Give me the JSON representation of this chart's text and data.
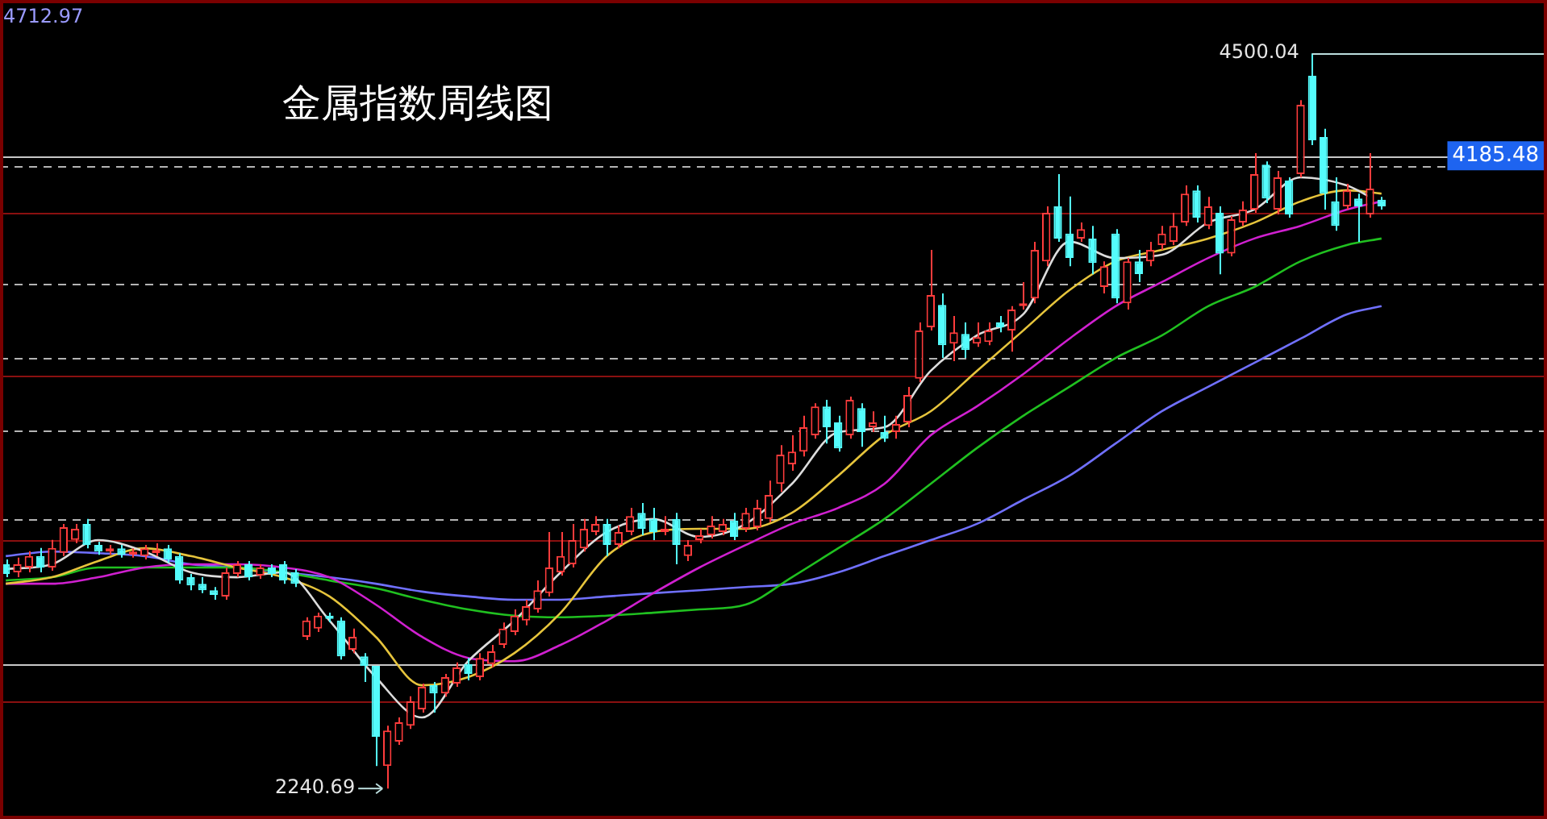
{
  "chart_data": {
    "type": "candlestick",
    "title": "金属指数周线图",
    "categories": [
      null,
      null,
      null,
      null,
      null,
      null,
      null,
      null,
      null,
      null,
      null,
      null,
      null,
      null,
      null,
      null,
      null,
      null,
      null,
      null,
      null,
      null,
      null,
      null,
      null,
      null,
      null,
      null,
      null,
      null,
      null,
      null,
      null,
      null,
      null,
      null,
      null,
      null,
      null,
      null,
      null,
      null,
      null,
      null,
      null,
      null,
      null,
      null,
      null,
      null,
      null,
      null,
      null,
      null,
      null,
      null,
      null,
      null,
      null,
      null,
      null,
      null,
      null,
      null,
      null,
      null,
      null,
      null,
      null,
      null,
      null,
      null,
      null,
      null,
      null,
      null,
      null,
      null,
      null,
      null,
      null,
      null,
      null,
      null,
      null,
      null,
      null,
      null,
      null,
      null,
      null,
      null,
      null,
      null,
      null,
      null,
      null,
      null,
      null,
      null,
      null,
      null,
      null,
      null,
      null,
      null,
      null,
      null,
      null,
      null,
      null,
      null,
      null,
      null,
      null,
      null,
      null,
      null,
      null,
      null
    ],
    "ohlc": [
      [
        2930,
        2945,
        2890,
        2900
      ],
      [
        2905,
        2950,
        2890,
        2930
      ],
      [
        2920,
        2970,
        2905,
        2955
      ],
      [
        2955,
        2980,
        2905,
        2920
      ],
      [
        2920,
        3005,
        2910,
        2980
      ],
      [
        2965,
        3054,
        2955,
        3044
      ],
      [
        3005,
        3054,
        2995,
        3039
      ],
      [
        3054,
        3069,
        2979,
        2989
      ],
      [
        2989,
        2999,
        2959,
        2969
      ],
      [
        2969,
        2989,
        2959,
        2979
      ],
      [
        2979,
        2989,
        2950,
        2959
      ],
      [
        2959,
        2979,
        2950,
        2969
      ],
      [
        2955,
        2989,
        2945,
        2979
      ],
      [
        2964,
        2994,
        2955,
        2974
      ],
      [
        2979,
        2989,
        2935,
        2945
      ],
      [
        2955,
        2964,
        2870,
        2880
      ],
      [
        2890,
        2900,
        2850,
        2865
      ],
      [
        2870,
        2890,
        2841,
        2850
      ],
      [
        2850,
        2860,
        2821,
        2836
      ],
      [
        2831,
        2920,
        2821,
        2905
      ],
      [
        2900,
        2940,
        2890,
        2930
      ],
      [
        2930,
        2940,
        2880,
        2890
      ],
      [
        2895,
        2930,
        2885,
        2920
      ],
      [
        2920,
        2930,
        2890,
        2900
      ],
      [
        2930,
        2940,
        2870,
        2880
      ],
      [
        2905,
        2915,
        2860,
        2870
      ],
      [
        2707,
        2767,
        2697,
        2757
      ],
      [
        2732,
        2781,
        2722,
        2772
      ],
      [
        2772,
        2781,
        2752,
        2762
      ],
      [
        2757,
        2767,
        2637,
        2647
      ],
      [
        2667,
        2732,
        2657,
        2707
      ],
      [
        2647,
        2657,
        2568,
        2618
      ],
      [
        2618,
        2618,
        2310,
        2400
      ],
      [
        2310,
        2434,
        2240.69,
        2419
      ],
      [
        2385,
        2459,
        2375,
        2444
      ],
      [
        2434,
        2524,
        2424,
        2509
      ],
      [
        2484,
        2563,
        2474,
        2553
      ],
      [
        2558,
        2568,
        2474,
        2533
      ],
      [
        2533,
        2593,
        2523,
        2583
      ],
      [
        2563,
        2628,
        2553,
        2613
      ],
      [
        2623,
        2642,
        2573,
        2593
      ],
      [
        2583,
        2657,
        2573,
        2642
      ],
      [
        2623,
        2682,
        2613,
        2662
      ],
      [
        2682,
        2751,
        2672,
        2732
      ],
      [
        2722,
        2791,
        2712,
        2772
      ],
      [
        2757,
        2821,
        2742,
        2801
      ],
      [
        2791,
        2880,
        2781,
        2850
      ],
      [
        2841,
        3029,
        2831,
        2920
      ],
      [
        2905,
        3029,
        2895,
        2955
      ],
      [
        2930,
        3054,
        2920,
        3004
      ],
      [
        2979,
        3069,
        2969,
        3039
      ],
      [
        3029,
        3078,
        3019,
        3054
      ],
      [
        3054,
        3069,
        2955,
        2989
      ],
      [
        2989,
        3049,
        2979,
        3029
      ],
      [
        3029,
        3103,
        3019,
        3078
      ],
      [
        3088,
        3118,
        3019,
        3039
      ],
      [
        3069,
        3103,
        3004,
        3029
      ],
      [
        3029,
        3078,
        3019,
        3039
      ],
      [
        3069,
        3088,
        2930,
        2989
      ],
      [
        2955,
        3004,
        2940,
        2989
      ],
      [
        3004,
        3039,
        2994,
        3019
      ],
      [
        3019,
        3078,
        3009,
        3049
      ],
      [
        3029,
        3069,
        3019,
        3054
      ],
      [
        3064,
        3088,
        3004,
        3014
      ],
      [
        3039,
        3103,
        3029,
        3088
      ],
      [
        3044,
        3128,
        3034,
        3103
      ],
      [
        3069,
        3187,
        3059,
        3143
      ],
      [
        3177,
        3296,
        3152,
        3267
      ],
      [
        3237,
        3326,
        3217,
        3276
      ],
      [
        3276,
        3386,
        3261,
        3351
      ],
      [
        3326,
        3425,
        3316,
        3415
      ],
      [
        3415,
        3435,
        3301,
        3351
      ],
      [
        3366,
        3386,
        3276,
        3286
      ],
      [
        3326,
        3445,
        3316,
        3435
      ],
      [
        3410,
        3425,
        3291,
        3336
      ],
      [
        3351,
        3400,
        3336,
        3366
      ],
      [
        3336,
        3386,
        3306,
        3316
      ],
      [
        3336,
        3386,
        3316,
        3361
      ],
      [
        3366,
        3475,
        3351,
        3450
      ],
      [
        3500,
        3673,
        3490,
        3648
      ],
      [
        3658,
        3896,
        3648,
        3757
      ],
      [
        3727,
        3762,
        3564,
        3603
      ],
      [
        3608,
        3693,
        3554,
        3643
      ],
      [
        3638,
        3673,
        3564,
        3588
      ],
      [
        3608,
        3673,
        3598,
        3628
      ],
      [
        3613,
        3673,
        3603,
        3648
      ],
      [
        3673,
        3693,
        3643,
        3658
      ],
      [
        3648,
        3723,
        3583,
        3713
      ],
      [
        3723,
        3797,
        3713,
        3732
      ],
      [
        3747,
        3921,
        3732,
        3896
      ],
      [
        3861,
        4030,
        3846,
        4010
      ],
      [
        4030,
        4129,
        3921,
        3931
      ],
      [
        3946,
        4060,
        3846,
        3871
      ],
      [
        3931,
        3980,
        3921,
        3960
      ],
      [
        3931,
        3970,
        3821,
        3856
      ],
      [
        3782,
        3861,
        3762,
        3846
      ],
      [
        3946,
        3960,
        3732,
        3747
      ],
      [
        3732,
        3871,
        3713,
        3861
      ],
      [
        3861,
        3896,
        3797,
        3822
      ],
      [
        3861,
        3921,
        3846,
        3896
      ],
      [
        3911,
        3970,
        3896,
        3946
      ],
      [
        3921,
        4010,
        3911,
        3970
      ],
      [
        3980,
        4094,
        3970,
        4069
      ],
      [
        4079,
        4094,
        3980,
        3995
      ],
      [
        3970,
        4059,
        3960,
        4030
      ],
      [
        4010,
        4030,
        3821,
        3885
      ],
      [
        3885,
        4000,
        3876,
        3990
      ],
      [
        3980,
        4045,
        3970,
        4020
      ],
      [
        4020,
        4193,
        4010,
        4129
      ],
      [
        4158,
        4168,
        4040,
        4054
      ],
      [
        4020,
        4139,
        4005,
        4119
      ],
      [
        4109,
        4119,
        3995,
        4005
      ],
      [
        4129,
        4356,
        4119,
        4342
      ],
      [
        4431,
        4500.04,
        4218,
        4233
      ],
      [
        4243,
        4268,
        4020,
        4069
      ],
      [
        4045,
        4119,
        3955,
        3970
      ],
      [
        4030,
        4099,
        4020,
        4079
      ],
      [
        4054,
        4069,
        3921,
        4030
      ],
      [
        4005,
        4193,
        3995,
        4084
      ],
      [
        4050,
        4059,
        4020,
        4030
      ]
    ],
    "colors": [
      "#54fcfc",
      "#ff3c3c",
      "#ff3c3c",
      "#54fcfc",
      "#ff3c3c",
      "#ff3c3c",
      "#ff3c3c",
      "#54fcfc",
      "#54fcfc",
      "#ff3c3c",
      "#54fcfc",
      "#ff3c3c",
      "#ff3c3c",
      "#ff3c3c",
      "#54fcfc",
      "#54fcfc",
      "#54fcfc",
      "#54fcfc",
      "#54fcfc",
      "#ff3c3c",
      "#ff3c3c",
      "#54fcfc",
      "#ff3c3c",
      "#54fcfc",
      "#54fcfc",
      "#54fcfc",
      "#ff3c3c",
      "#ff3c3c",
      "#54fcfc",
      "#54fcfc",
      "#ff3c3c",
      "#54fcfc",
      "#54fcfc",
      "#ff3c3c",
      "#ff3c3c",
      "#ff3c3c",
      "#ff3c3c",
      "#54fcfc",
      "#ff3c3c",
      "#ff3c3c",
      "#54fcfc",
      "#ff3c3c",
      "#ff3c3c",
      "#ff3c3c",
      "#ff3c3c",
      "#ff3c3c",
      "#ff3c3c",
      "#ff3c3c",
      "#ff3c3c",
      "#ff3c3c",
      "#ff3c3c",
      "#ff3c3c",
      "#54fcfc",
      "#ff3c3c",
      "#ff3c3c",
      "#54fcfc",
      "#54fcfc",
      "#ff3c3c",
      "#54fcfc",
      "#ff3c3c",
      "#ff3c3c",
      "#ff3c3c",
      "#ff3c3c",
      "#54fcfc",
      "#ff3c3c",
      "#ff3c3c",
      "#ff3c3c",
      "#ff3c3c",
      "#ff3c3c",
      "#ff3c3c",
      "#ff3c3c",
      "#54fcfc",
      "#54fcfc",
      "#ff3c3c",
      "#54fcfc",
      "#ff3c3c",
      "#54fcfc",
      "#ff3c3c",
      "#ff3c3c",
      "#ff3c3c",
      "#ff3c3c",
      "#54fcfc",
      "#ff3c3c",
      "#54fcfc",
      "#ff3c3c",
      "#ff3c3c",
      "#54fcfc",
      "#ff3c3c",
      "#ff3c3c",
      "#ff3c3c",
      "#ff3c3c",
      "#54fcfc",
      "#54fcfc",
      "#ff3c3c",
      "#54fcfc",
      "#ff3c3c",
      "#54fcfc",
      "#ff3c3c",
      "#54fcfc",
      "#ff3c3c",
      "#ff3c3c",
      "#ff3c3c",
      "#ff3c3c",
      "#54fcfc",
      "#ff3c3c",
      "#54fcfc",
      "#ff3c3c",
      "#ff3c3c",
      "#ff3c3c",
      "#54fcfc",
      "#ff3c3c",
      "#54fcfc",
      "#ff3c3c",
      "#54fcfc",
      "#54fcfc",
      "#54fcfc",
      "#ff3c3c",
      "#54fcfc",
      "#ff3c3c",
      "#54fcfc"
    ],
    "series": [
      {
        "type": "line",
        "color": "#dcdcdc",
        "values": [
          2915,
          null,
          null,
          null,
          2930,
          null,
          null,
          null,
          3004,
          null,
          null,
          null,
          2969,
          null,
          null,
          null,
          2905,
          null,
          null,
          null,
          2890,
          null,
          null,
          null,
          2905,
          null,
          null,
          null,
          2757,
          null,
          null,
          null,
          2583,
          null,
          null,
          null,
          2459,
          null,
          null,
          null,
          2632,
          null,
          null,
          null,
          2757,
          null,
          null,
          null,
          2905,
          null,
          null,
          null,
          3029,
          null,
          null,
          null,
          3069,
          null,
          null,
          null,
          3014,
          null,
          null,
          null,
          3054,
          null,
          null,
          null,
          3177,
          null,
          null,
          null,
          3336,
          null,
          null,
          null,
          3351,
          null,
          null,
          null,
          3524,
          null,
          null,
          null,
          3633,
          null,
          null,
          null,
          3698,
          null,
          null,
          null,
          3921,
          null,
          null,
          null,
          3871,
          null,
          null,
          null,
          3881,
          null,
          null,
          null,
          3980,
          null,
          null,
          null,
          4020,
          null,
          null,
          null,
          4119,
          null,
          null,
          null,
          4094,
          null,
          4059,
          null
        ]
      },
      {
        "type": "line",
        "color": "#e6c43c",
        "values": [
          2870,
          null,
          null,
          null,
          2890,
          null,
          null,
          null,
          2940,
          null,
          null,
          null,
          2979,
          null,
          null,
          null,
          2955,
          null,
          null,
          null,
          2920,
          null,
          null,
          null,
          2890,
          null,
          null,
          null,
          2831,
          null,
          null,
          null,
          2707,
          null,
          null,
          null,
          2558,
          null,
          null,
          null,
          2583,
          null,
          null,
          null,
          2657,
          null,
          null,
          null,
          2781,
          null,
          null,
          null,
          2955,
          null,
          null,
          null,
          3029,
          null,
          null,
          null,
          3039,
          null,
          null,
          null,
          3039,
          null,
          null,
          null,
          3088,
          null,
          null,
          null,
          3202,
          null,
          null,
          null,
          3326,
          null,
          null,
          null,
          3400,
          null,
          null,
          null,
          3524,
          null,
          null,
          null,
          3648,
          null,
          null,
          null,
          3772,
          null,
          null,
          null,
          3861,
          null,
          null,
          null,
          3896,
          null,
          null,
          null,
          3931,
          null,
          null,
          null,
          3980,
          null,
          null,
          null,
          4045,
          null,
          null,
          null,
          4079,
          null,
          null,
          4069
        ]
      },
      {
        "type": "line",
        "color": "#d020d0",
        "values": [
          2870,
          null,
          null,
          null,
          2870,
          null,
          null,
          null,
          2890,
          null,
          null,
          null,
          2920,
          null,
          null,
          null,
          2930,
          null,
          null,
          null,
          2930,
          null,
          null,
          null,
          2920,
          null,
          null,
          null,
          2890,
          null,
          null,
          null,
          2806,
          null,
          null,
          null,
          2707,
          null,
          null,
          null,
          2642,
          null,
          null,
          null,
          2632,
          null,
          null,
          null,
          2682,
          null,
          null,
          null,
          2757,
          null,
          null,
          null,
          2841,
          null,
          null,
          null,
          2920,
          null,
          null,
          null,
          2989,
          null,
          null,
          null,
          3054,
          null,
          null,
          null,
          3103,
          null,
          null,
          null,
          3177,
          null,
          null,
          null,
          3326,
          null,
          null,
          null,
          3415,
          null,
          null,
          null,
          3514,
          null,
          null,
          null,
          3623,
          null,
          null,
          null,
          3723,
          null,
          null,
          null,
          3797,
          null,
          null,
          null,
          3871,
          null,
          null,
          null,
          3931,
          null,
          null,
          null,
          3970,
          null,
          null,
          null,
          4020,
          null,
          null,
          4045
        ]
      },
      {
        "type": "line",
        "color": "#20c020",
        "values": [
          2880,
          null,
          null,
          null,
          2890,
          null,
          null,
          null,
          2920,
          null,
          null,
          null,
          2920,
          null,
          null,
          null,
          2920,
          null,
          null,
          null,
          2920,
          null,
          null,
          null,
          2905,
          null,
          null,
          null,
          2880,
          null,
          null,
          null,
          2856,
          null,
          null,
          null,
          2821,
          null,
          null,
          null,
          2791,
          null,
          null,
          null,
          2772,
          null,
          null,
          null,
          2767,
          null,
          null,
          null,
          2772,
          null,
          null,
          null,
          2781,
          null,
          null,
          null,
          2791,
          null,
          null,
          null,
          2806,
          null,
          null,
          null,
          2890,
          null,
          null,
          null,
          2979,
          null,
          null,
          null,
          3069,
          null,
          null,
          null,
          3177,
          null,
          null,
          null,
          3287,
          null,
          null,
          null,
          3386,
          null,
          null,
          null,
          3475,
          null,
          null,
          null,
          3564,
          null,
          null,
          null,
          3633,
          null,
          null,
          null,
          3723,
          null,
          null,
          null,
          3782,
          null,
          null,
          null,
          3861,
          null,
          null,
          null,
          3911,
          null,
          null,
          3931
        ]
      },
      {
        "type": "line",
        "color": "#7070ff",
        "values": [
          2955,
          null,
          null,
          null,
          2969,
          null,
          null,
          null,
          2964,
          null,
          null,
          null,
          2955,
          null,
          null,
          null,
          2930,
          null,
          null,
          null,
          2920,
          null,
          null,
          null,
          2905,
          null,
          null,
          null,
          2890,
          null,
          null,
          null,
          2870,
          null,
          null,
          null,
          2846,
          null,
          null,
          null,
          2831,
          null,
          null,
          null,
          2821,
          null,
          null,
          null,
          2821,
          null,
          null,
          null,
          2831,
          null,
          null,
          null,
          2841,
          null,
          null,
          null,
          2850,
          null,
          null,
          null,
          2860,
          null,
          null,
          null,
          2870,
          null,
          null,
          null,
          2905,
          null,
          null,
          null,
          2955,
          null,
          null,
          null,
          3004,
          null,
          null,
          null,
          3054,
          null,
          null,
          null,
          3128,
          null,
          null,
          null,
          3202,
          null,
          null,
          null,
          3301,
          null,
          null,
          null,
          3400,
          null,
          null,
          null,
          3475,
          null,
          null,
          null,
          3549,
          null,
          null,
          null,
          3623,
          null,
          null,
          null,
          3698,
          null,
          null,
          3723
        ]
      }
    ],
    "ylim": [
      2147,
      4664
    ],
    "yticks": [
      {
        "value": 3069,
        "label": null
      },
      {
        "value": 3341,
        "label": null
      },
      {
        "value": 3564,
        "label": null
      },
      {
        "value": 3792,
        "label": null
      },
      {
        "value": 4153,
        "label": null
      }
    ],
    "grid": "y",
    "tick_labels": false,
    "legend": false,
    "ref_lines": [
      {
        "axis": "y",
        "value": 4185.48,
        "label": "4185.48",
        "color": "#c8c8c8"
      },
      {
        "axis": "y",
        "value": 2623,
        "label": null,
        "color": "#c8c8c8"
      },
      {
        "axis": "y",
        "value": 4010,
        "label": null,
        "color": "#8a1010"
      },
      {
        "axis": "y",
        "value": 3509,
        "label": null,
        "color": "#8a1010"
      },
      {
        "axis": "y",
        "value": 3004,
        "label": null,
        "color": "#8a1010"
      },
      {
        "axis": "y",
        "value": 2509,
        "label": null,
        "color": "#8a1010"
      }
    ],
    "annotations": [
      "4712.97",
      "4500.04",
      "2240.69"
    ]
  }
}
